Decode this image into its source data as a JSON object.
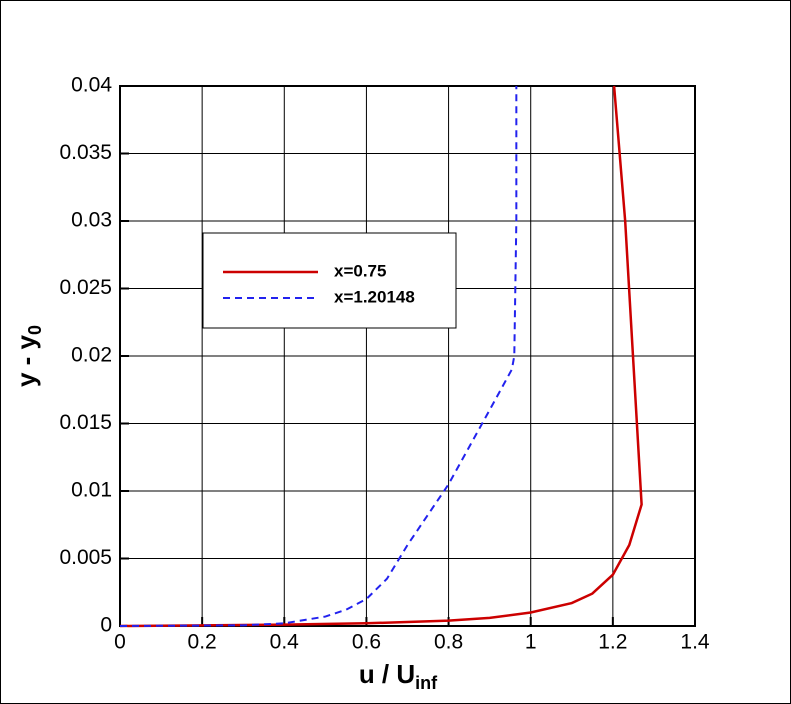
{
  "chart_data": {
    "type": "line",
    "xlabel": {
      "text": "u / U",
      "subscript": "inf"
    },
    "ylabel": {
      "text": "y - y",
      "subscript": "0"
    },
    "xlim": [
      0,
      1.4
    ],
    "ylim": [
      0,
      0.04
    ],
    "xticks": [
      0,
      0.2,
      0.4,
      0.6,
      0.8,
      1,
      1.2,
      1.4
    ],
    "yticks": [
      0,
      0.005,
      0.01,
      0.015,
      0.02,
      0.025,
      0.03,
      0.035,
      0.04
    ],
    "grid": true,
    "series": [
      {
        "name": "x=0.75",
        "color": "#cc0000",
        "dash": false,
        "x": [
          0,
          0.2,
          0.4,
          0.6,
          0.8,
          0.9,
          1.0,
          1.1,
          1.15,
          1.2,
          1.24,
          1.27,
          1.249,
          1.23,
          1.203
        ],
        "values": [
          0,
          5e-05,
          0.0001,
          0.0002,
          0.0004,
          0.0006,
          0.001,
          0.0017,
          0.0024,
          0.0038,
          0.006,
          0.009,
          0.02,
          0.03,
          0.04
        ]
      },
      {
        "name": "x=1.20148",
        "color": "#2222ee",
        "dash": true,
        "x": [
          0,
          0.3,
          0.4,
          0.5,
          0.55,
          0.6,
          0.65,
          0.7,
          0.8,
          0.9,
          0.954,
          0.96,
          0.965,
          0.965
        ],
        "values": [
          0,
          5e-05,
          0.0002,
          0.0007,
          0.0012,
          0.002,
          0.0035,
          0.006,
          0.0105,
          0.016,
          0.019,
          0.02,
          0.03,
          0.04
        ]
      }
    ]
  }
}
